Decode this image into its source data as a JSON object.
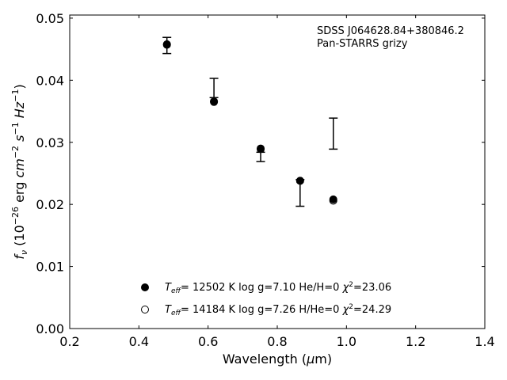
{
  "chart_data": {
    "type": "scatter",
    "title": "",
    "xlabel": "Wavelength (μm)",
    "ylabel": "f_ν (10^-26 erg cm^-2 s^-1 Hz^-1)",
    "xlim": [
      0.2,
      1.4
    ],
    "ylim": [
      0.0,
      0.0505
    ],
    "xticks": [
      0.2,
      0.4,
      0.6,
      0.8,
      1.0,
      1.2,
      1.4
    ],
    "xtick_labels": [
      "0.2",
      "0.4",
      "0.6",
      "0.8",
      "1.0",
      "1.2",
      "1.4"
    ],
    "yticks": [
      0.0,
      0.01,
      0.02,
      0.03,
      0.04,
      0.05
    ],
    "ytick_labels": [
      "0.00",
      "0.01",
      "0.02",
      "0.03",
      "0.04",
      "0.05"
    ],
    "grid": false,
    "legend_position": "lower-center",
    "annotation": {
      "line1": "SDSS J064628.84+380846.2",
      "line2": "Pan-STARRS grizy"
    },
    "observed": {
      "x": [
        0.481,
        0.617,
        0.752,
        0.866,
        0.962
      ],
      "y_low": [
        0.0443,
        0.0372,
        0.0269,
        0.0197,
        0.0289
      ],
      "y_high": [
        0.0469,
        0.0403,
        0.0284,
        0.024,
        0.0339
      ]
    },
    "series": [
      {
        "name": "T_eff= 12502 K  log g=7.10  He/H=0  χ²=23.06",
        "marker": "filled-circle",
        "x": [
          0.481,
          0.617,
          0.752,
          0.866,
          0.962
        ],
        "y": [
          0.0458,
          0.0366,
          0.029,
          0.0238,
          0.0208
        ]
      },
      {
        "name": "T_eff= 14184 K  log g=7.26  H/He=0  χ²=24.29",
        "marker": "open-circle",
        "x": [
          0.481,
          0.617,
          0.752,
          0.866,
          0.962
        ],
        "y": [
          0.0457,
          0.0365,
          0.0289,
          0.0238,
          0.0206
        ]
      }
    ]
  }
}
